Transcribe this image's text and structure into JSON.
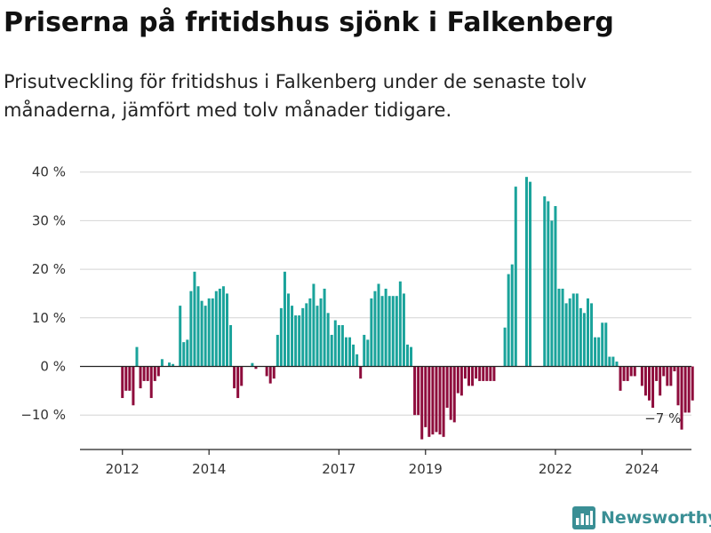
{
  "title": "Priserna på fritidshus sjönk i Falkenberg",
  "subtitle": "Prisutveckling för fritidshus i Falkenberg under de senaste tolv månaderna, jämfört med tolv månader tidigare.",
  "brand": {
    "name": "Newsworthy",
    "icon": "newsworthy-logo-icon",
    "color": "#3a8f95"
  },
  "colors": {
    "positive": "#1aa39b",
    "negative": "#8e0c3c",
    "axis": "#222222",
    "grid": "#d4d4d4"
  },
  "chart_data": {
    "type": "bar",
    "ylabel": "",
    "xlabel": "",
    "ylim": [
      -17,
      42
    ],
    "yticks": [
      40,
      30,
      20,
      10,
      0,
      -10
    ],
    "ytick_labels": [
      "40 %",
      "30 %",
      "20 %",
      "10 %",
      "0 %",
      "−10 %"
    ],
    "xticks": [
      {
        "label": "2012",
        "index": 4
      },
      {
        "label": "2014",
        "index": 28
      },
      {
        "label": "2017",
        "index": 64
      },
      {
        "label": "2019",
        "index": 88
      },
      {
        "label": "2022",
        "index": 124
      },
      {
        "label": "2024",
        "index": 148
      }
    ],
    "annotation": {
      "text": "−7 %",
      "index": 154
    },
    "values": [
      null,
      null,
      null,
      null,
      -6.5,
      -5,
      -5,
      -8,
      4,
      -4.5,
      -3,
      -3,
      -6.5,
      -3,
      -2,
      1.5,
      null,
      0.8,
      0.5,
      null,
      12.5,
      5,
      5.5,
      15.5,
      19.5,
      16.5,
      13.5,
      12.5,
      14,
      14,
      15.5,
      16,
      16.5,
      15,
      8.5,
      -4.5,
      -6.5,
      -4,
      null,
      null,
      0.7,
      -0.5,
      null,
      null,
      -2,
      -3.5,
      -2.5,
      6.5,
      12,
      19.5,
      15,
      12.5,
      10.5,
      10.5,
      12,
      13,
      14,
      17,
      12.5,
      14,
      16,
      11,
      6.5,
      9.5,
      8.5,
      8.5,
      6,
      6,
      4.5,
      2.5,
      -2.5,
      6.5,
      5.5,
      14,
      15.5,
      17,
      14.5,
      16,
      14.5,
      14.5,
      14.5,
      17.5,
      15,
      4.5,
      4,
      -10,
      -10,
      -15,
      -12.5,
      -14.5,
      -14,
      -13.5,
      -14,
      -14.5,
      -8.5,
      -11,
      -11.5,
      -5.5,
      -6,
      -2.5,
      -4,
      -4,
      -2.5,
      -3,
      -3,
      -3,
      -3,
      -3,
      null,
      null,
      8,
      19,
      21,
      37,
      null,
      null,
      39,
      38,
      null,
      null,
      null,
      35,
      34,
      30,
      33,
      16,
      16,
      13,
      14,
      15,
      15,
      12,
      11,
      14,
      13,
      6,
      6,
      9,
      9,
      2,
      2,
      1,
      -5,
      -3,
      -3,
      -2,
      -2,
      null,
      -4,
      -6,
      -7,
      -8.5,
      -3,
      -6,
      -2,
      -4,
      -4,
      -1,
      -8,
      -13,
      -9.5,
      -9.5,
      -7
    ]
  }
}
